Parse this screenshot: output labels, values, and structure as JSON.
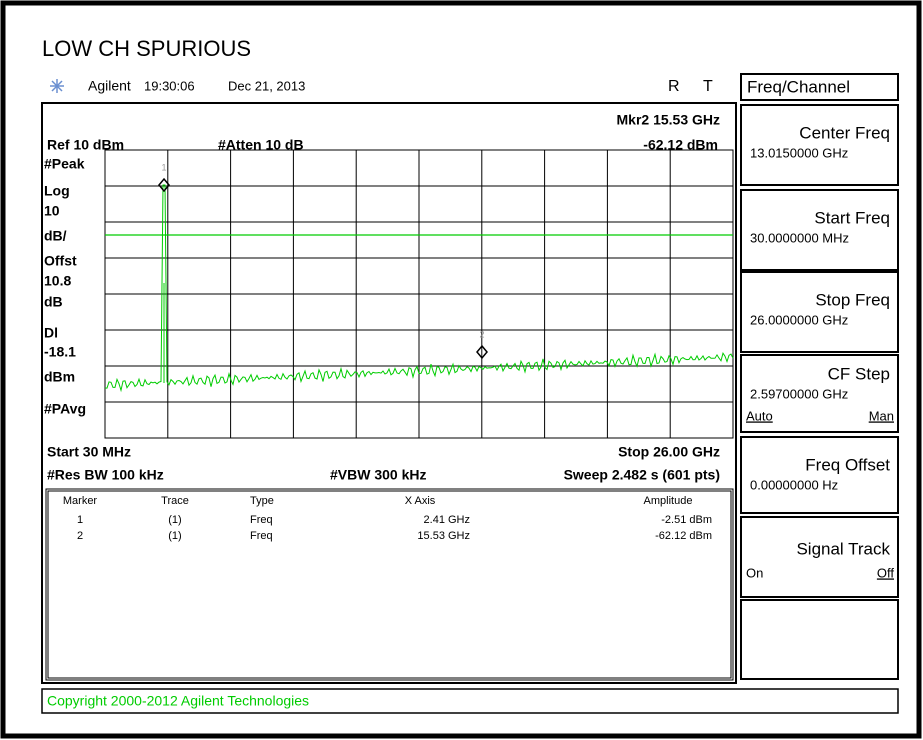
{
  "title": "LOW CH SPURIOUS",
  "header": {
    "brand": "Agilent",
    "time": "19:30:06",
    "date": "Dec 21, 2013",
    "r": "R",
    "t": "T"
  },
  "menu": "Freq/Channel",
  "display": {
    "ref": "Ref 10 dBm",
    "atten": "#Atten 10 dB",
    "marker_freq": "Mkr2 15.53 GHz",
    "marker_amp": "-62.12 dBm",
    "left_labels": [
      "#Peak",
      "Log",
      "10",
      "dB/",
      "Offst",
      "10.8",
      "dB",
      "Dl",
      "-18.1",
      "dBm",
      "#PAvg"
    ],
    "start": "Start 30 MHz",
    "stop": "Stop 26.00 GHz",
    "res_bw": "#Res BW 100 kHz",
    "vbw": "#VBW 300 kHz",
    "sweep": "Sweep 2.482 s (601 pts)",
    "marker_labels": [
      "1",
      "2"
    ]
  },
  "table": {
    "columns": [
      "Marker",
      "Trace",
      "Type",
      "X Axis",
      "Amplitude"
    ],
    "rows": [
      [
        "1",
        "(1)",
        "Freq",
        "2.41 GHz",
        "-2.51 dBm"
      ],
      [
        "2",
        "(1)",
        "Freq",
        "15.53 GHz",
        "-62.12 dBm"
      ]
    ]
  },
  "softkeys": [
    {
      "label": "Center Freq",
      "value": "13.0150000 GHz"
    },
    {
      "label": "Start Freq",
      "value": "30.0000000 MHz"
    },
    {
      "label": "Stop Freq",
      "value": "26.0000000 GHz"
    },
    {
      "label": "CF Step",
      "value": "2.59700000 GHz",
      "left": "Auto",
      "right": "Man"
    },
    {
      "label": "Freq Offset",
      "value": "0.00000000  Hz"
    },
    {
      "label": "Signal Track",
      "left": "On",
      "right": "Off"
    }
  ],
  "copyright": "Copyright 2000-2012 Agilent Technologies"
}
